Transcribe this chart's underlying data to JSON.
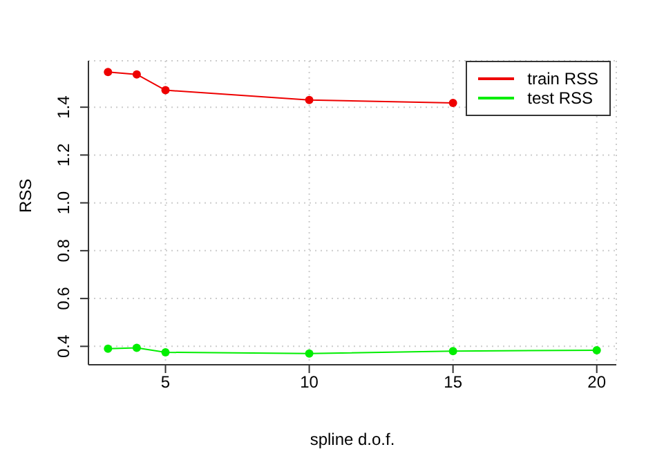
{
  "chart_data": {
    "type": "line",
    "xlabel": "spline d.o.f.",
    "ylabel": "RSS",
    "x": [
      3,
      4,
      5,
      10,
      15,
      20
    ],
    "series": [
      {
        "name": "train RSS",
        "color": "#ee0000",
        "values": [
          1.547,
          1.537,
          1.471,
          1.43,
          1.418,
          null
        ]
      },
      {
        "name": "test RSS",
        "color": "#00ee00",
        "values": [
          0.39,
          0.394,
          0.375,
          0.37,
          0.38,
          0.384
        ]
      }
    ],
    "xlim": [
      2.32,
      20.68
    ],
    "xticks": [
      5,
      10,
      15,
      20
    ],
    "ylim": [
      0.323,
      1.594
    ],
    "yticks": [
      0.4,
      0.6,
      0.8,
      {
        "value": 1,
        "label": "1.0"
      },
      1.2,
      1.4
    ],
    "grid": true,
    "legend": "top right",
    "marker": "circle",
    "line_style": "solid"
  }
}
